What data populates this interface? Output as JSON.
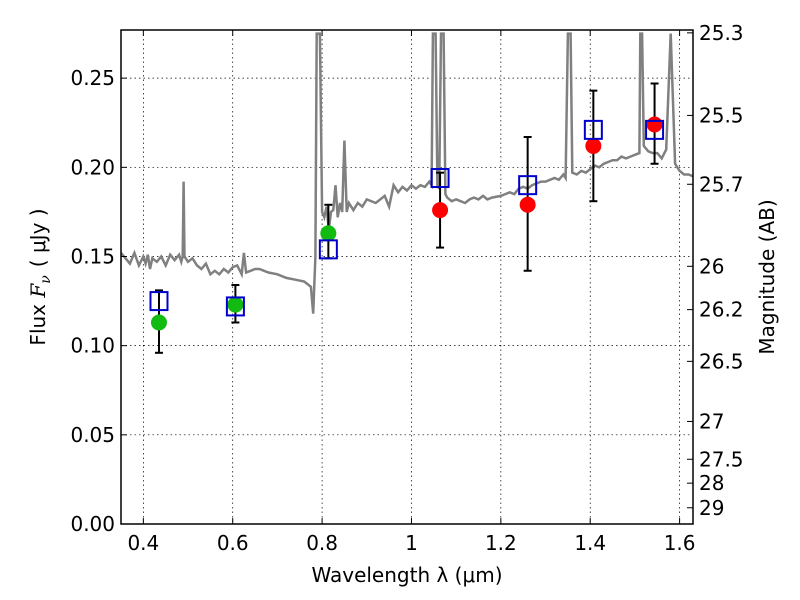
{
  "chart_data": {
    "type": "scatter",
    "xlabel": "Wavelength  λ (μm)",
    "ylabel_left": {
      "prefix": "Flux  ",
      "symbol": "F",
      "subscript": "ν",
      "units": "( μJy )"
    },
    "ylabel_right": "Magnitude (AB)",
    "xlim": [
      0.35,
      1.63
    ],
    "ylim": [
      0.0,
      0.277
    ],
    "grid": true,
    "x_ticks": [
      {
        "value": 0.4,
        "label": "0.4"
      },
      {
        "value": 0.6,
        "label": "0.6"
      },
      {
        "value": 0.8,
        "label": "0.8"
      },
      {
        "value": 1.0,
        "label": "1"
      },
      {
        "value": 1.2,
        "label": "1.2"
      },
      {
        "value": 1.4,
        "label": "1.4"
      },
      {
        "value": 1.6,
        "label": "1.6"
      }
    ],
    "y_ticks": [
      {
        "value": 0.0,
        "label": "0.00"
      },
      {
        "value": 0.05,
        "label": "0.05"
      },
      {
        "value": 0.1,
        "label": "0.10"
      },
      {
        "value": 0.15,
        "label": "0.15"
      },
      {
        "value": 0.2,
        "label": "0.20"
      },
      {
        "value": 0.25,
        "label": "0.25"
      }
    ],
    "right_ticks": [
      {
        "label": "25.3",
        "flux": 0.2754
      },
      {
        "label": "25.5",
        "flux": 0.2291
      },
      {
        "label": "25.7",
        "flux": 0.1905
      },
      {
        "label": "26",
        "flux": 0.1445
      },
      {
        "label": "26.2",
        "flux": 0.1202
      },
      {
        "label": "26.5",
        "flux": 0.0912
      },
      {
        "label": "27",
        "flux": 0.0575
      },
      {
        "label": "27.5",
        "flux": 0.0363
      },
      {
        "label": "28",
        "flux": 0.0229
      },
      {
        "label": "29",
        "flux": 0.0091
      }
    ],
    "colors": {
      "model": "#808080",
      "model_photometry": "#0000cc",
      "optical_points": "#11bb11",
      "nir_points": "#ff0000",
      "errorbars": "#000000"
    },
    "model_photometry": [
      {
        "x": 0.435,
        "y": 0.125
      },
      {
        "x": 0.606,
        "y": 0.122
      },
      {
        "x": 0.814,
        "y": 0.154
      },
      {
        "x": 1.064,
        "y": 0.194
      },
      {
        "x": 1.26,
        "y": 0.19
      },
      {
        "x": 1.407,
        "y": 0.221
      },
      {
        "x": 1.544,
        "y": 0.221
      }
    ],
    "observed": [
      {
        "x": 0.435,
        "y": 0.113,
        "yerr_lo": 0.017,
        "yerr_hi": 0.018,
        "group": "optical"
      },
      {
        "x": 0.606,
        "y": 0.123,
        "yerr_lo": 0.01,
        "yerr_hi": 0.011,
        "group": "optical"
      },
      {
        "x": 0.814,
        "y": 0.163,
        "yerr_lo": 0.014,
        "yerr_hi": 0.016,
        "group": "optical"
      },
      {
        "x": 1.064,
        "y": 0.176,
        "yerr_lo": 0.021,
        "yerr_hi": 0.021,
        "group": "nir"
      },
      {
        "x": 1.26,
        "y": 0.179,
        "yerr_lo": 0.037,
        "yerr_hi": 0.038,
        "group": "nir"
      },
      {
        "x": 1.407,
        "y": 0.212,
        "yerr_lo": 0.031,
        "yerr_hi": 0.031,
        "group": "nir"
      },
      {
        "x": 1.544,
        "y": 0.224,
        "yerr_lo": 0.022,
        "yerr_hi": 0.023,
        "group": "nir"
      }
    ],
    "model_spectrum": [
      [
        0.35,
        0.152
      ],
      [
        0.36,
        0.149
      ],
      [
        0.37,
        0.146
      ],
      [
        0.38,
        0.152
      ],
      [
        0.39,
        0.145
      ],
      [
        0.4,
        0.15
      ],
      [
        0.405,
        0.146
      ],
      [
        0.41,
        0.151
      ],
      [
        0.415,
        0.143
      ],
      [
        0.42,
        0.149
      ],
      [
        0.43,
        0.147
      ],
      [
        0.44,
        0.15
      ],
      [
        0.45,
        0.145
      ],
      [
        0.46,
        0.151
      ],
      [
        0.47,
        0.148
      ],
      [
        0.48,
        0.151
      ],
      [
        0.485,
        0.147
      ],
      [
        0.488,
        0.15
      ],
      [
        0.49,
        0.192
      ],
      [
        0.492,
        0.15
      ],
      [
        0.5,
        0.147
      ],
      [
        0.51,
        0.149
      ],
      [
        0.52,
        0.145
      ],
      [
        0.53,
        0.143
      ],
      [
        0.54,
        0.146
      ],
      [
        0.55,
        0.14
      ],
      [
        0.56,
        0.142
      ],
      [
        0.57,
        0.14
      ],
      [
        0.58,
        0.143
      ],
      [
        0.59,
        0.141
      ],
      [
        0.6,
        0.144
      ],
      [
        0.61,
        0.145
      ],
      [
        0.62,
        0.14
      ],
      [
        0.625,
        0.152
      ],
      [
        0.63,
        0.141
      ],
      [
        0.64,
        0.142
      ],
      [
        0.65,
        0.143
      ],
      [
        0.66,
        0.143
      ],
      [
        0.67,
        0.142
      ],
      [
        0.68,
        0.141
      ],
      [
        0.7,
        0.14
      ],
      [
        0.72,
        0.138
      ],
      [
        0.74,
        0.137
      ],
      [
        0.76,
        0.136
      ],
      [
        0.775,
        0.133
      ],
      [
        0.78,
        0.118
      ],
      [
        0.785,
        0.15
      ],
      [
        0.788,
        0.275
      ],
      [
        0.795,
        0.275
      ],
      [
        0.8,
        0.175
      ],
      [
        0.805,
        0.172
      ],
      [
        0.81,
        0.178
      ],
      [
        0.815,
        0.165
      ],
      [
        0.82,
        0.175
      ],
      [
        0.825,
        0.176
      ],
      [
        0.83,
        0.19
      ],
      [
        0.835,
        0.172
      ],
      [
        0.84,
        0.18
      ],
      [
        0.845,
        0.175
      ],
      [
        0.85,
        0.215
      ],
      [
        0.855,
        0.175
      ],
      [
        0.86,
        0.18
      ],
      [
        0.87,
        0.176
      ],
      [
        0.88,
        0.18
      ],
      [
        0.89,
        0.178
      ],
      [
        0.9,
        0.182
      ],
      [
        0.92,
        0.18
      ],
      [
        0.94,
        0.184
      ],
      [
        0.95,
        0.178
      ],
      [
        0.96,
        0.19
      ],
      [
        0.97,
        0.186
      ],
      [
        0.98,
        0.189
      ],
      [
        0.99,
        0.187
      ],
      [
        1.0,
        0.19
      ],
      [
        1.01,
        0.188
      ],
      [
        1.02,
        0.19
      ],
      [
        1.03,
        0.189
      ],
      [
        1.04,
        0.192
      ],
      [
        1.045,
        0.19
      ],
      [
        1.048,
        0.275
      ],
      [
        1.054,
        0.275
      ],
      [
        1.058,
        0.19
      ],
      [
        1.062,
        0.188
      ],
      [
        1.066,
        0.275
      ],
      [
        1.072,
        0.275
      ],
      [
        1.076,
        0.185
      ],
      [
        1.08,
        0.183
      ],
      [
        1.09,
        0.181
      ],
      [
        1.1,
        0.182
      ],
      [
        1.11,
        0.181
      ],
      [
        1.12,
        0.18
      ],
      [
        1.13,
        0.182
      ],
      [
        1.14,
        0.183
      ],
      [
        1.15,
        0.182
      ],
      [
        1.16,
        0.184
      ],
      [
        1.17,
        0.182
      ],
      [
        1.18,
        0.183
      ],
      [
        1.2,
        0.184
      ],
      [
        1.21,
        0.185
      ],
      [
        1.22,
        0.186
      ],
      [
        1.23,
        0.185
      ],
      [
        1.24,
        0.188
      ],
      [
        1.25,
        0.189
      ],
      [
        1.26,
        0.188
      ],
      [
        1.27,
        0.19
      ],
      [
        1.28,
        0.191
      ],
      [
        1.29,
        0.192
      ],
      [
        1.3,
        0.192
      ],
      [
        1.31,
        0.193
      ],
      [
        1.32,
        0.194
      ],
      [
        1.33,
        0.193
      ],
      [
        1.34,
        0.196
      ],
      [
        1.345,
        0.194
      ],
      [
        1.35,
        0.275
      ],
      [
        1.356,
        0.275
      ],
      [
        1.36,
        0.197
      ],
      [
        1.37,
        0.196
      ],
      [
        1.38,
        0.198
      ],
      [
        1.39,
        0.197
      ],
      [
        1.4,
        0.199
      ],
      [
        1.41,
        0.201
      ],
      [
        1.42,
        0.2
      ],
      [
        1.43,
        0.202
      ],
      [
        1.44,
        0.203
      ],
      [
        1.45,
        0.204
      ],
      [
        1.46,
        0.204
      ],
      [
        1.47,
        0.206
      ],
      [
        1.48,
        0.205
      ],
      [
        1.49,
        0.206
      ],
      [
        1.5,
        0.207
      ],
      [
        1.51,
        0.208
      ],
      [
        1.512,
        0.275
      ],
      [
        1.516,
        0.275
      ],
      [
        1.52,
        0.212
      ],
      [
        1.53,
        0.209
      ],
      [
        1.54,
        0.208
      ],
      [
        1.55,
        0.208
      ],
      [
        1.56,
        0.205
      ],
      [
        1.57,
        0.21
      ],
      [
        1.58,
        0.275
      ],
      [
        1.59,
        0.202
      ],
      [
        1.6,
        0.198
      ],
      [
        1.61,
        0.196
      ],
      [
        1.62,
        0.196
      ],
      [
        1.63,
        0.195
      ]
    ]
  }
}
